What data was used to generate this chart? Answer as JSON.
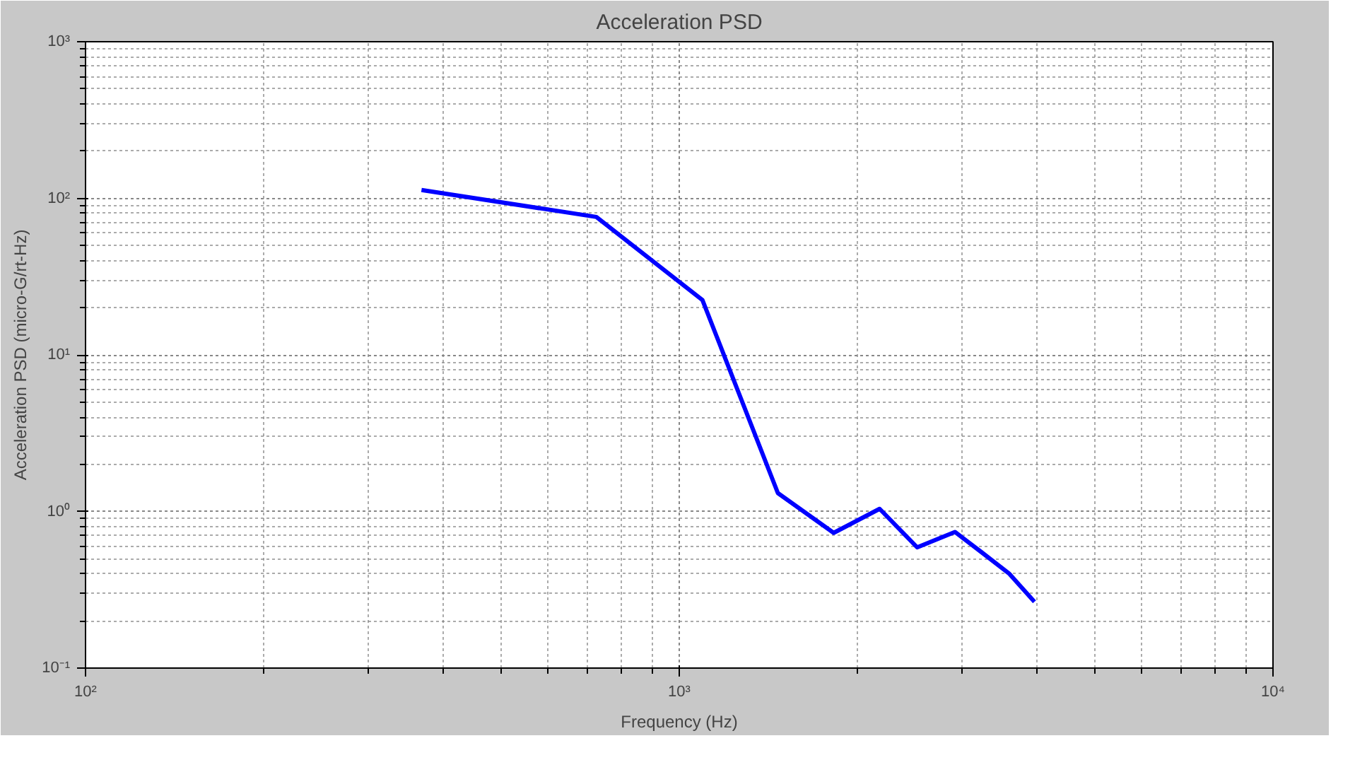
{
  "chart_data": {
    "type": "line",
    "title": "Acceleration PSD",
    "xlabel": "Frequency (Hz)",
    "ylabel": "Acceleration PSD (micro-G/rt-Hz)",
    "log": "xy",
    "grid": true,
    "line_style": "solid",
    "marker": "none",
    "xlim": [
      100,
      10000
    ],
    "ylim": [
      0.1,
      1000
    ],
    "xticks": [
      {
        "value": 100,
        "label": "10²"
      },
      {
        "value": 1000,
        "label": "10³"
      },
      {
        "value": 10000,
        "label": "10⁴"
      }
    ],
    "yticks": [
      {
        "value": 0.1,
        "label": "10⁻¹"
      },
      {
        "value": 1,
        "label": "10⁰"
      },
      {
        "value": 10,
        "label": "10¹"
      },
      {
        "value": 100,
        "label": "10²"
      },
      {
        "value": 1000,
        "label": "10³"
      }
    ],
    "x": [
      368,
      725,
      1094,
      1466,
      1820,
      2175,
      2516,
      2913,
      3228,
      3598,
      3965
    ],
    "series": [
      {
        "color": "#0000ff",
        "values": [
          113,
          76,
          22.4,
          1.31,
          0.73,
          1.04,
          0.59,
          0.74,
          0.55,
          0.4,
          0.265
        ]
      }
    ]
  }
}
